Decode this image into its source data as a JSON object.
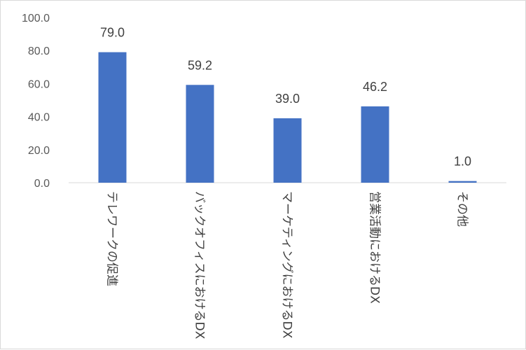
{
  "chart_data": {
    "type": "bar",
    "categories": [
      "テレワークの促進",
      "バックオフィスにおけるDX",
      "マーケティングにおけるDX",
      "営業活動におけるDX",
      "その他"
    ],
    "values": [
      79.0,
      59.2,
      39.0,
      46.2,
      1.0
    ],
    "value_labels": [
      "79.0",
      "59.2",
      "39.0",
      "46.2",
      "1.0"
    ],
    "y_ticks": [
      "0.0",
      "20.0",
      "40.0",
      "60.0",
      "80.0",
      "100.0"
    ],
    "ylim": [
      0,
      100
    ],
    "grid": false,
    "legend": "none",
    "bar_color": "#4472c4",
    "axis_color": "#d9d9d9"
  }
}
